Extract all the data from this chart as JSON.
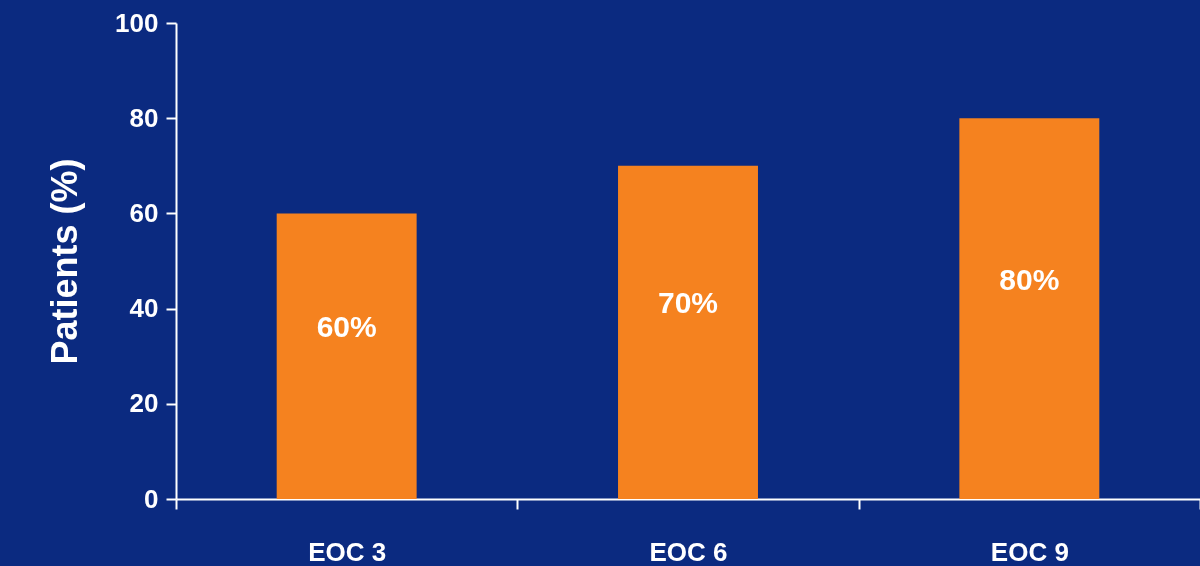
{
  "chart_data": {
    "type": "bar",
    "ylabel": "Patients (%)",
    "categories": [
      "EOC 3",
      "EOC 6",
      "EOC 9"
    ],
    "values": [
      60,
      70,
      80
    ],
    "value_labels": [
      "60%",
      "70%",
      "80%"
    ],
    "color": "#f5821f",
    "ylim": [
      0,
      100
    ],
    "yticks": [
      0,
      20,
      40,
      60,
      80,
      100
    ],
    "grid": false
  }
}
